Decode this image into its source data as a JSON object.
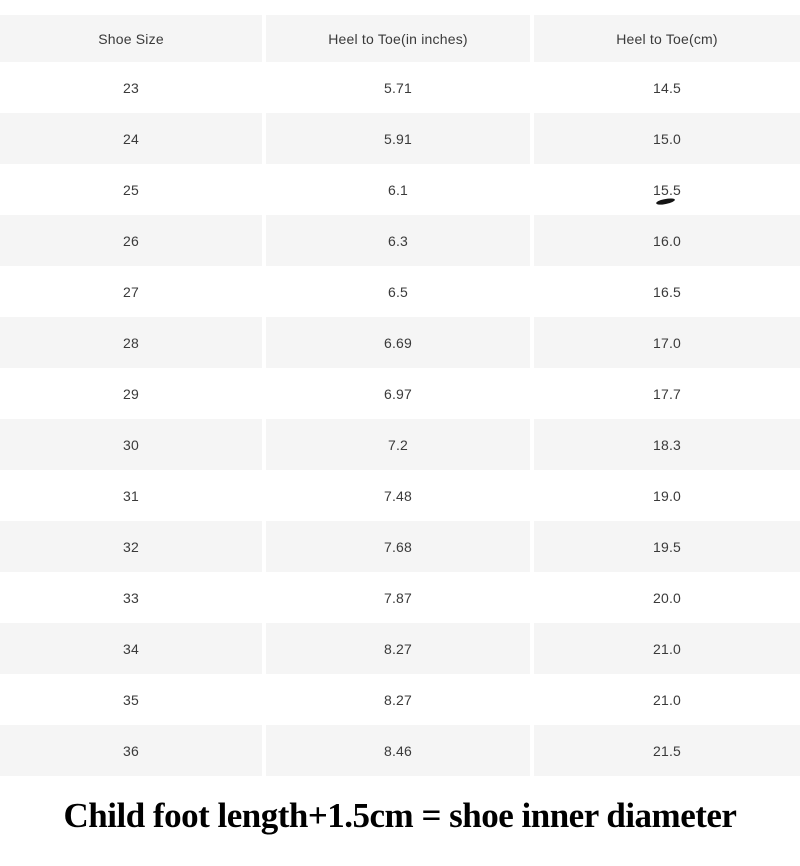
{
  "chart_data": {
    "type": "table",
    "columns": [
      "Shoe Size",
      "Heel to Toe(in inches)",
      "Heel to Toe(cm)"
    ],
    "rows": [
      [
        "23",
        "5.71",
        "14.5"
      ],
      [
        "24",
        "5.91",
        "15.0"
      ],
      [
        "25",
        "6.1",
        "15.5"
      ],
      [
        "26",
        "6.3",
        "16.0"
      ],
      [
        "27",
        "6.5",
        "16.5"
      ],
      [
        "28",
        "6.69",
        "17.0"
      ],
      [
        "29",
        "6.97",
        "17.7"
      ],
      [
        "30",
        "7.2",
        "18.3"
      ],
      [
        "31",
        "7.48",
        "19.0"
      ],
      [
        "32",
        "7.68",
        "19.5"
      ],
      [
        "33",
        "7.87",
        "20.0"
      ],
      [
        "34",
        "8.27",
        "21.0"
      ],
      [
        "35",
        "8.27",
        "21.0"
      ],
      [
        "36",
        "8.46",
        "21.5"
      ]
    ],
    "layout": {
      "striped": true,
      "header_background": "alt",
      "first_data_row_background": "white"
    },
    "annotations": [
      {
        "type": "pen-mark",
        "description": "small handwritten dash under the cm value of size 25",
        "row": "25",
        "column": "Heel to Toe(cm)",
        "value_marked": "15.5"
      }
    ]
  },
  "footer": {
    "note": "Child foot length+1.5cm = shoe inner diameter"
  },
  "colors": {
    "row_bg": "#ffffff",
    "row_alt_bg": "#f5f5f5",
    "text": "#3a3a3a",
    "mark": "#141414",
    "note_text": "#000000"
  }
}
